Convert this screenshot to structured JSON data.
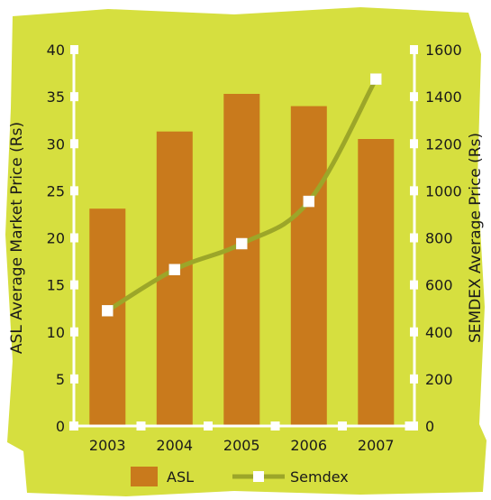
{
  "chart_data": {
    "type": "bar",
    "categories": [
      "2003",
      "2004",
      "2005",
      "2006",
      "2007"
    ],
    "series": [
      {
        "name": "ASL",
        "type": "bar",
        "axis": "left",
        "values": [
          23.1,
          31.3,
          35.3,
          34.0,
          30.5
        ]
      },
      {
        "name": "Semdex",
        "type": "line",
        "axis": "right",
        "values": [
          490,
          665,
          775,
          955,
          1475
        ]
      }
    ],
    "y_left": {
      "label": "ASL Average Market Price (Rs)",
      "range": [
        0,
        40
      ],
      "ticks": [
        0,
        5,
        10,
        15,
        20,
        25,
        30,
        35,
        40
      ]
    },
    "y_right": {
      "label": "SEMDEX Average Price (Rs)",
      "range": [
        0,
        1600
      ],
      "ticks": [
        0,
        200,
        400,
        600,
        800,
        1000,
        1200,
        1400,
        1600
      ]
    },
    "legend": {
      "position": "bottom",
      "items": [
        "ASL",
        "Semdex"
      ]
    },
    "grid": false,
    "colors": {
      "background": "#d6df3f",
      "bar": "#c97a1c",
      "line": "#9ca629",
      "axis": "#ffffff",
      "marker": "#ffffff"
    }
  }
}
